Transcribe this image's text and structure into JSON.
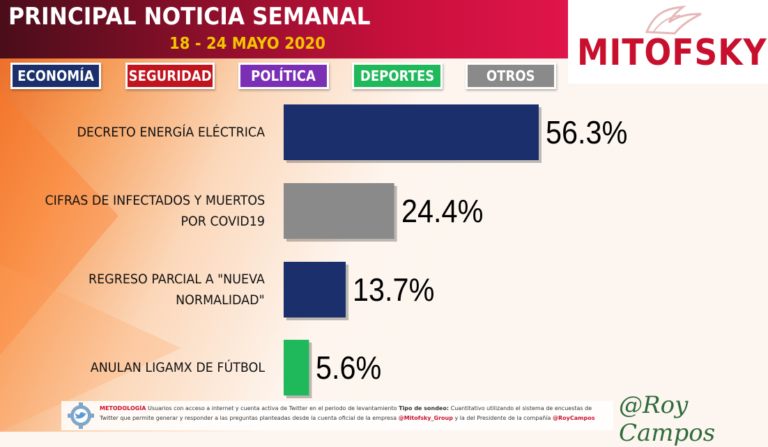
{
  "header": {
    "title": "PRINCIPAL NOTICIA SEMANAL",
    "date": "18 - 24 MAYO 2020"
  },
  "logo": {
    "text": "MITOFSKY"
  },
  "tabs": [
    {
      "label": "ECONOMÍA",
      "color": "#1a2f6b"
    },
    {
      "label": "SEGURIDAD",
      "color": "#c0141f"
    },
    {
      "label": "POLÍTICA",
      "color": "#7b2fb5"
    },
    {
      "label": "DEPORTES",
      "color": "#1fb85a"
    },
    {
      "label": "OTROS",
      "color": "#8a8a8a"
    }
  ],
  "chart_data": {
    "type": "bar",
    "orientation": "horizontal",
    "categories": [
      "DECRETO ENERGÍA ELÉCTRICA",
      "CIFRAS DE INFECTADOS Y MUERTOS POR COVID19",
      "REGRESO PARCIAL A \"NUEVA NORMALIDAD\"",
      "ANULAN LIGAMX DE FÚTBOL"
    ],
    "category_lines": [
      [
        "DECRETO ENERGÍA ELÉCTRICA"
      ],
      [
        "CIFRAS DE INFECTADOS Y MUERTOS",
        "POR COVID19"
      ],
      [
        "REGRESO PARCIAL A \"NUEVA",
        "NORMALIDAD\""
      ],
      [
        "ANULAN LIGAMX DE FÚTBOL"
      ]
    ],
    "values": [
      56.3,
      24.4,
      13.7,
      5.6
    ],
    "value_labels": [
      "56.3%",
      "24.4%",
      "13.7%",
      "5.6%"
    ],
    "bar_colors": [
      "#1a2f6b",
      "#8a8a8a",
      "#1a2f6b",
      "#1fb85a"
    ],
    "xlim": [
      0,
      56.3
    ],
    "grid": false,
    "legend": "top"
  },
  "footer": {
    "methodology_label": "METODOLOGÍA",
    "text1": " Usuarios con acceso a internet y cuenta activa de Twitter en el periodo de levantamiento ",
    "tipo_label": "Tipo de sondeo:",
    "text2": " Cuantitativo utilizando el sistema de encuestas de Twitter que permite generar y responder a las preguntas planteadas desde la cuenta oficial de la empresa ",
    "handle1": "@Mitofsky_Group",
    "text3": " y la del Presidente de la compañía ",
    "handle2": "@RoyCampos"
  },
  "signature": "@Roy Campos"
}
